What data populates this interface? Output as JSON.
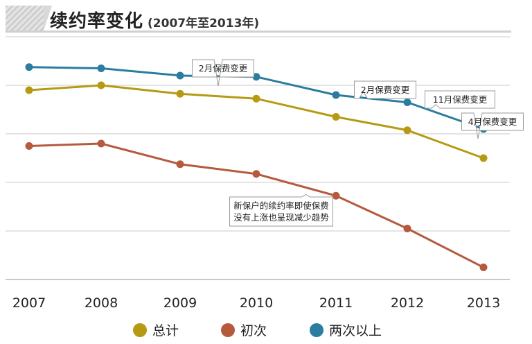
{
  "header": {
    "title": "续约率变化",
    "subtitle": "(2007年至2013年)"
  },
  "colors": {
    "total": "#b59a12",
    "first": "#b65a3e",
    "multi": "#2a7d9e",
    "grid": "#c9c9c9"
  },
  "chart_data": {
    "type": "line",
    "x": [
      "2007",
      "2008",
      "2009",
      "2010",
      "2011",
      "2012",
      "2013"
    ],
    "ylim": [
      0,
      100
    ],
    "grid": true,
    "legend_position": "bottom",
    "series": [
      {
        "key": "total",
        "name": "总计",
        "values": [
          78,
          80,
          76.5,
          74.5,
          67,
          61.5,
          50
        ]
      },
      {
        "key": "first",
        "name": "初次",
        "values": [
          55,
          56,
          47.5,
          43.5,
          34.5,
          21,
          5
        ]
      },
      {
        "key": "multi",
        "name": "两次以上",
        "values": [
          87.5,
          87,
          84,
          83.5,
          76,
          73,
          62
        ]
      }
    ],
    "annotations": [
      {
        "text": [
          "2月保费变更"
        ],
        "x_index": 2.5,
        "series": "multi"
      },
      {
        "text": [
          "2月保费变更"
        ],
        "x_index": 4.5,
        "series": "multi"
      },
      {
        "text": [
          "11月保费变更"
        ],
        "x_index": 5.5,
        "series": "multi"
      },
      {
        "text": [
          "4月保费变更"
        ],
        "x_index": 6,
        "series": "multi"
      },
      {
        "text": [
          "新保户的续约率即使保费",
          "没有上涨也呈现减少趋势"
        ],
        "x_index": 3.5,
        "series": "first"
      }
    ]
  },
  "legend": [
    {
      "label": "总计",
      "color_key": "total"
    },
    {
      "label": "初次",
      "color_key": "first"
    },
    {
      "label": "两次以上",
      "color_key": "multi"
    }
  ]
}
